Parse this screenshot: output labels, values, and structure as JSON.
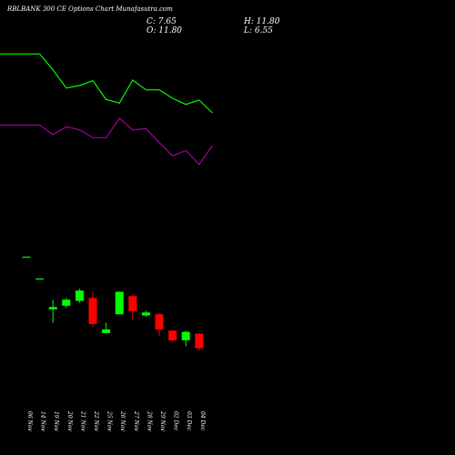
{
  "header": {
    "title": "RBLBANK 300 CE Options Chart Munafasutra.com",
    "close_label": "C: 7.65",
    "open_label": "O: 11.80",
    "high_label": "H: 11.80",
    "low_label": "L: 6.55"
  },
  "colors": {
    "background": "#000000",
    "up_candle": "#00ff00",
    "down_candle": "#ff0000",
    "green_line": "#00ff00",
    "purple_line": "#a000a0",
    "text": "#ffffff"
  },
  "chart_data": {
    "type": "candlestick",
    "grid": false,
    "legend": "none",
    "categories": [
      "06 Nov",
      "14 Nov",
      "19 Nov",
      "20 Nov",
      "21 Nov",
      "22 Nov",
      "25 Nov",
      "26 Nov",
      "27 Nov",
      "28 Nov",
      "29 Nov",
      "02 Dec",
      "03 Dec",
      "04 Dec"
    ],
    "candles": [
      {
        "date": "06 Nov",
        "open": 32.7,
        "high": 32.7,
        "low": 32.7,
        "close": 32.7
      },
      {
        "date": "14 Nov",
        "open": 29.1,
        "high": 29.1,
        "low": 29.1,
        "close": 29.1
      },
      {
        "date": "19 Nov",
        "open": 24.0,
        "high": 25.6,
        "low": 21.8,
        "close": 24.4
      },
      {
        "date": "20 Nov",
        "open": 24.6,
        "high": 25.9,
        "low": 24.2,
        "close": 25.6
      },
      {
        "date": "21 Nov",
        "open": 25.4,
        "high": 27.4,
        "low": 25.1,
        "close": 27.1
      },
      {
        "date": "22 Nov",
        "open": 25.9,
        "high": 26.8,
        "low": 21.1,
        "close": 21.6
      },
      {
        "date": "25 Nov",
        "open": 20.1,
        "high": 21.8,
        "low": 20.1,
        "close": 20.7
      },
      {
        "date": "26 Nov",
        "open": 23.2,
        "high": 27.0,
        "low": 23.2,
        "close": 26.9
      },
      {
        "date": "27 Nov",
        "open": 26.2,
        "high": 26.5,
        "low": 22.2,
        "close": 23.7
      },
      {
        "date": "28 Nov",
        "open": 23.0,
        "high": 23.8,
        "low": 22.8,
        "close": 23.5
      },
      {
        "date": "29 Nov",
        "open": 23.2,
        "high": 23.4,
        "low": 19.6,
        "close": 20.7
      },
      {
        "date": "02 Dec",
        "open": 20.5,
        "high": 20.6,
        "low": 18.7,
        "close": 18.9
      },
      {
        "date": "03 Dec",
        "open": 18.9,
        "high": 20.5,
        "low": 17.9,
        "close": 20.3
      },
      {
        "date": "04 Dec",
        "open": 20.0,
        "high": 20.1,
        "low": 17.2,
        "close": 17.6
      }
    ],
    "green_line": [
      {
        "date": "06 Nov",
        "value": 66.1
      },
      {
        "date": "14 Nov",
        "value": 66.1
      },
      {
        "date": "19 Nov",
        "value": 63.5
      },
      {
        "date": "20 Nov",
        "value": 60.5
      },
      {
        "date": "21 Nov",
        "value": 60.9
      },
      {
        "date": "22 Nov",
        "value": 61.7
      },
      {
        "date": "25 Nov",
        "value": 58.6
      },
      {
        "date": "26 Nov",
        "value": 58.0
      },
      {
        "date": "27 Nov",
        "value": 61.8
      },
      {
        "date": "28 Nov",
        "value": 60.2
      },
      {
        "date": "29 Nov",
        "value": 60.2
      },
      {
        "date": "02 Dec",
        "value": 58.8
      },
      {
        "date": "03 Dec",
        "value": 57.8
      },
      {
        "date": "04 Dec",
        "value": 58.5
      },
      {
        "date": "05 Dec",
        "value": 56.4
      }
    ],
    "purple_line": [
      {
        "date": "06 Nov",
        "value": 54.4
      },
      {
        "date": "14 Nov",
        "value": 54.4
      },
      {
        "date": "19 Nov",
        "value": 52.8
      },
      {
        "date": "20 Nov",
        "value": 54.1
      },
      {
        "date": "21 Nov",
        "value": 53.6
      },
      {
        "date": "22 Nov",
        "value": 52.3
      },
      {
        "date": "25 Nov",
        "value": 52.3
      },
      {
        "date": "26 Nov",
        "value": 55.5
      },
      {
        "date": "27 Nov",
        "value": 53.6
      },
      {
        "date": "28 Nov",
        "value": 53.8
      },
      {
        "date": "29 Nov",
        "value": 51.5
      },
      {
        "date": "02 Dec",
        "value": 49.3
      },
      {
        "date": "03 Dec",
        "value": 50.2
      },
      {
        "date": "04 Dec",
        "value": 47.9
      },
      {
        "date": "05 Dec",
        "value": 51.0
      }
    ],
    "ylim": [
      0,
      75
    ],
    "xlabel": "",
    "ylabel": ""
  }
}
